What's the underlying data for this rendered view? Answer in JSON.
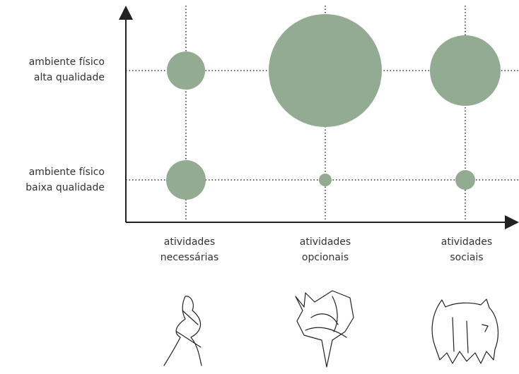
{
  "rows": [
    {
      "line1": "ambiente físico",
      "line2": "alta qualidade"
    },
    {
      "line1": "ambiente físico",
      "line2": "baixa qualidade"
    }
  ],
  "columns": [
    {
      "line1": "atividades",
      "line2": "necessárias"
    },
    {
      "line1": "atividades",
      "line2": "opcionais"
    },
    {
      "line1": "atividades",
      "line2": "sociais"
    }
  ]
}
